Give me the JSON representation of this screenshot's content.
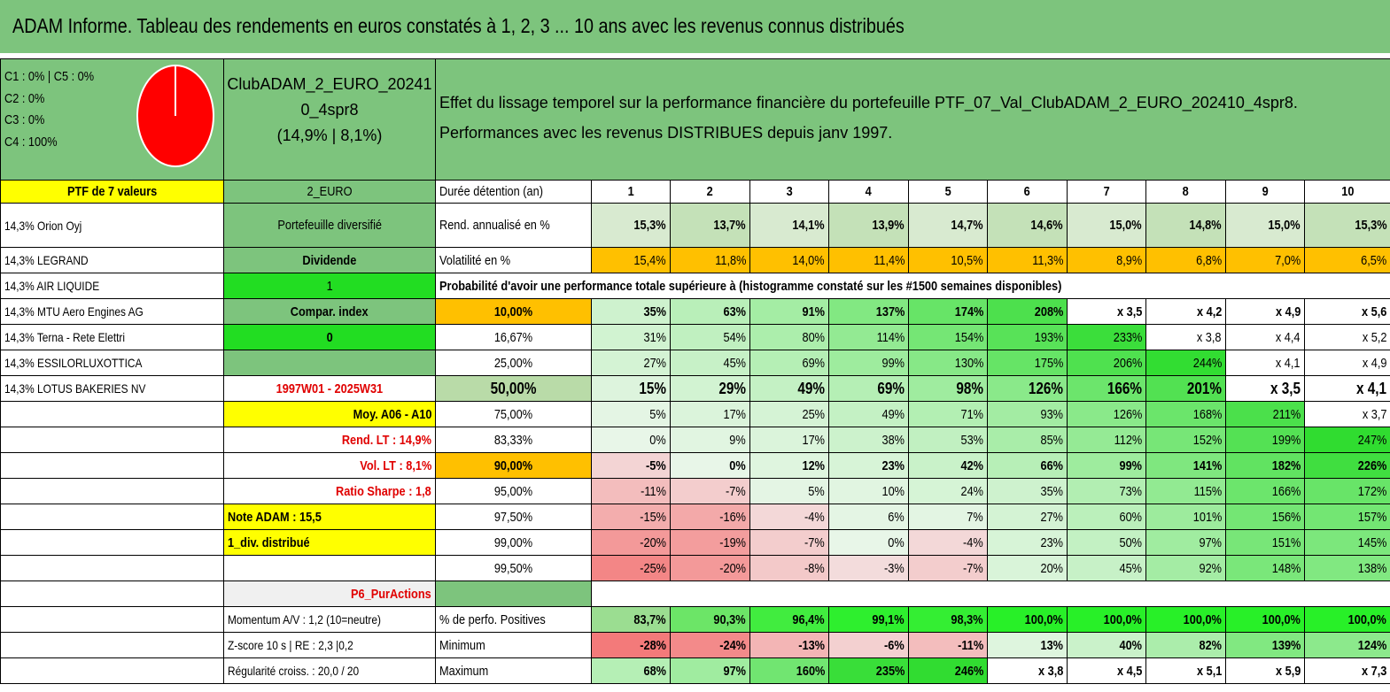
{
  "title": "ADAM Informe. Tableau des rendements en euros constatés à 1, 2, 3 ... 10 ans avec les revenus connus distribués",
  "allocation": [
    "C1 : 0% | C5 : 0%",
    "C2 : 0%",
    "C3 : 0%",
    "C4 : 100%"
  ],
  "fund": {
    "name_line1": "ClubADAM_2_EURO_20241",
    "name_line2": "0_4spr8",
    "stats": "(14,9% | 8,1%)"
  },
  "description": {
    "line1": "Effet du lissage temporel sur la performance financière du portefeuille PTF_07_Val_ClubADAM_2_EURO_202410_4spr8.",
    "line2": "Performances avec les revenus DISTRIBUES depuis janv 1997."
  },
  "colors": {
    "green_header": "#7dc47d",
    "bright_green": "#22dd22",
    "yellow": "#ffff00",
    "orange": "#ffc000",
    "red_text": "#e00000"
  },
  "ptf_header": "PTF de 7 valeurs",
  "holdings": [
    "14,3% Orion Oyj",
    "14,3% LEGRAND",
    "14,3% AIR LIQUIDE",
    "14,3% MTU Aero Engines AG",
    "14,3% Terna - Rete Elettri",
    "14,3% ESSILORLUXOTTICA",
    "14,3% LOTUS BAKERIES NV"
  ],
  "info": {
    "category": "2_EURO",
    "portfolio_type": "Portefeuille diversifié",
    "dividend_label": "Dividende",
    "dividend_value": "1",
    "compar_label": "Compar. index",
    "compar_value": "0",
    "period": "1997W01 - 2025W31",
    "moy": "Moy. A06 - A10",
    "rend_lt": "Rend. LT : 14,9%",
    "vol_lt": "Vol. LT : 8,1%",
    "sharpe": "Ratio Sharpe : 1,8",
    "note": "Note ADAM : 15,5",
    "div_distrib": "1_div. distribué",
    "strategy": "P6_PurActions",
    "momentum": "Momentum A/V : 1,2 (10=neutre)",
    "zscore": "Z-score 10 s | RE : 2,3 |0,2",
    "regularite": "Régularité croiss. : 20,0 / 20"
  },
  "table": {
    "duration_label": "Durée détention (an)",
    "years": [
      "1",
      "2",
      "3",
      "4",
      "5",
      "6",
      "7",
      "8",
      "9",
      "10"
    ],
    "rend_label": "Rend. annualisé en %",
    "rend": [
      "15,3%",
      "13,7%",
      "14,1%",
      "13,9%",
      "14,7%",
      "14,6%",
      "15,0%",
      "14,8%",
      "15,0%",
      "15,3%"
    ],
    "vol_label": "Volatilité en %",
    "vol": [
      "15,4%",
      "11,8%",
      "14,0%",
      "11,4%",
      "10,5%",
      "11,3%",
      "8,9%",
      "6,8%",
      "7,0%",
      "6,5%"
    ],
    "prob_header": "Probabilité d'avoir une performance totale supérieure à (histogramme constaté sur les #1500 semaines disponibles)",
    "prob_rows": [
      {
        "p": "10,00%",
        "v": [
          "35%",
          "63%",
          "91%",
          "137%",
          "174%",
          "208%",
          "x 3,5",
          "x 4,2",
          "x 4,9",
          "x 5,6"
        ]
      },
      {
        "p": "16,67%",
        "v": [
          "31%",
          "54%",
          "80%",
          "114%",
          "154%",
          "193%",
          "233%",
          "x 3,8",
          "x 4,4",
          "x 5,2"
        ]
      },
      {
        "p": "25,00%",
        "v": [
          "27%",
          "45%",
          "69%",
          "99%",
          "130%",
          "175%",
          "206%",
          "244%",
          "x 4,1",
          "x 4,9"
        ]
      },
      {
        "p": "50,00%",
        "v": [
          "15%",
          "29%",
          "49%",
          "69%",
          "98%",
          "126%",
          "166%",
          "201%",
          "x 3,5",
          "x 4,1"
        ]
      },
      {
        "p": "75,00%",
        "v": [
          "5%",
          "17%",
          "25%",
          "49%",
          "71%",
          "93%",
          "126%",
          "168%",
          "211%",
          "x 3,7"
        ]
      },
      {
        "p": "83,33%",
        "v": [
          "0%",
          "9%",
          "17%",
          "38%",
          "53%",
          "85%",
          "112%",
          "152%",
          "199%",
          "247%"
        ]
      },
      {
        "p": "90,00%",
        "v": [
          "-5%",
          "0%",
          "12%",
          "23%",
          "42%",
          "66%",
          "99%",
          "141%",
          "182%",
          "226%"
        ]
      },
      {
        "p": "95,00%",
        "v": [
          "-11%",
          "-7%",
          "5%",
          "10%",
          "24%",
          "35%",
          "73%",
          "115%",
          "166%",
          "172%"
        ]
      },
      {
        "p": "97,50%",
        "v": [
          "-15%",
          "-16%",
          "-4%",
          "6%",
          "7%",
          "27%",
          "60%",
          "101%",
          "156%",
          "157%"
        ]
      },
      {
        "p": "99,00%",
        "v": [
          "-20%",
          "-19%",
          "-7%",
          "0%",
          "-4%",
          "23%",
          "50%",
          "97%",
          "151%",
          "145%"
        ]
      },
      {
        "p": "99,50%",
        "v": [
          "-25%",
          "-20%",
          "-8%",
          "-3%",
          "-7%",
          "20%",
          "45%",
          "92%",
          "148%",
          "138%"
        ]
      }
    ],
    "pos_label": "% de perfo. Positives",
    "pos": [
      "83,7%",
      "90,3%",
      "96,4%",
      "99,1%",
      "98,3%",
      "100,0%",
      "100,0%",
      "100,0%",
      "100,0%",
      "100,0%"
    ],
    "min_label": "Minimum",
    "min": [
      "-28%",
      "-24%",
      "-13%",
      "-6%",
      "-11%",
      "13%",
      "40%",
      "82%",
      "139%",
      "124%"
    ],
    "max_label": "Maximum",
    "max": [
      "68%",
      "97%",
      "160%",
      "235%",
      "246%",
      "x 3,8",
      "x 4,5",
      "x 5,1",
      "x 5,9",
      "x 7,3"
    ]
  }
}
